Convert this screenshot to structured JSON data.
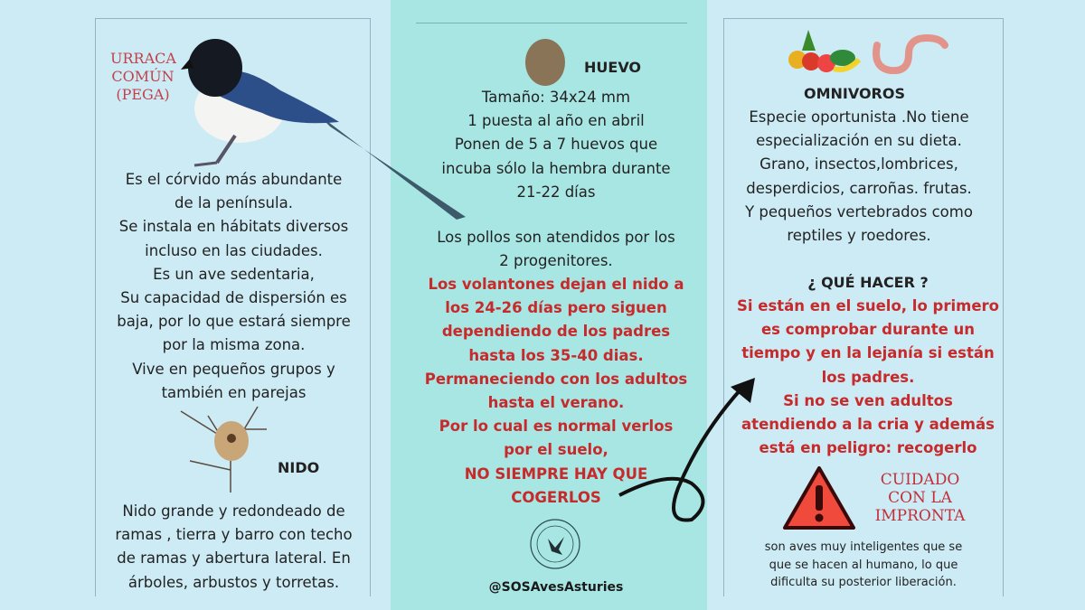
{
  "left": {
    "species_title": [
      "URRACA",
      "COMÚN",
      "(PEGA)"
    ],
    "description": [
      "Es el córvido más abundante",
      "de la península.",
      "Se instala en hábitats diversos",
      "incluso en las ciudades.",
      "Es un ave sedentaria,",
      "Su capacidad de dispersión es",
      "baja, por lo que estará siempre",
      "por la misma zona.",
      "Vive en pequeños grupos y",
      "también en parejas"
    ],
    "nest_title": "NIDO",
    "nest_text": [
      "Nido grande y redondeado de",
      "ramas , tierra y barro con techo",
      "de ramas y abertura lateral. En",
      "árboles, arbustos  y torretas."
    ]
  },
  "middle": {
    "egg_title": "HUEVO",
    "egg_text": [
      "Tamaño: 34x24 mm",
      "1 puesta al año en abril",
      "Ponen de 5 a 7 huevos que",
      "incuba sólo la hembra durante",
      "21-22 días"
    ],
    "chicks_text": [
      "Los pollos son atendidos por los",
      "2 progenitores."
    ],
    "chicks_red": [
      "Los volantones dejan el nido a",
      "los 24-26 días pero siguen",
      "dependiendo de los padres",
      "hasta los 35-40 dias.",
      "Permaneciendo con los adultos",
      "hasta el verano.",
      "Por lo cual es normal verlos",
      "por el suelo,",
      "NO SIEMPRE HAY QUE",
      "COGERLOS"
    ],
    "logo_text": "SOS AVES ASTURIES",
    "handle": "@SOSAvesAsturies"
  },
  "right": {
    "diet_title": "OMNIVOROS",
    "diet_text": [
      "Especie oportunista .No tiene",
      "especialización en su dieta.",
      "Grano, insectos,lombrices,",
      "desperdicios, carroñas. frutas.",
      "Y pequeños  vertebrados como",
      "reptiles y roedores."
    ],
    "what_title": "¿ QUÉ HACER ?",
    "what_red": [
      "Si están en el suelo, lo primero",
      "es comprobar durante un",
      "tiempo y en la lejanía  si están",
      "los padres.",
      "Si no se ven adultos",
      "atendiendo a la cria y además",
      "está en peligro: recogerlo"
    ],
    "warning_title": [
      "CUIDADO",
      "CON LA",
      "IMPRONTA"
    ],
    "warning_text": [
      "son aves muy inteligentes que se",
      "que se hacen al humano, lo que",
      "dificulta su posterior liberación."
    ]
  },
  "colors": {
    "red": "#c62a2a",
    "teal": "#a8e6e4",
    "background": "#cdebf5"
  }
}
